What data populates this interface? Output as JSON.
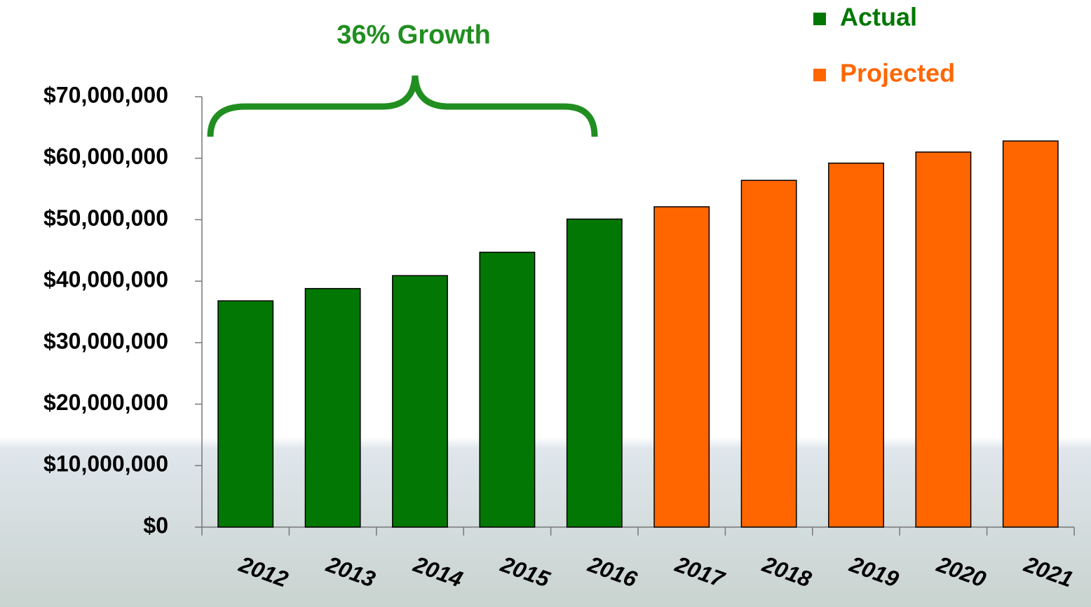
{
  "chart_data": {
    "type": "bar",
    "annotation": "36% Growth",
    "categories": [
      "2012",
      "2013",
      "2014",
      "2015",
      "2016",
      "2017",
      "2018",
      "2019",
      "2020",
      "2021"
    ],
    "series": [
      {
        "name": "Actual",
        "color": "#037703",
        "values": [
          36800000,
          38800000,
          40900000,
          44700000,
          50100000,
          null,
          null,
          null,
          null,
          null
        ]
      },
      {
        "name": "Projected",
        "color": "#ff6600",
        "values": [
          null,
          null,
          null,
          null,
          null,
          52100000,
          56400000,
          59200000,
          61000000,
          62800000
        ]
      }
    ],
    "ylim": [
      0,
      70000000
    ],
    "yticks": [
      {
        "value": 0,
        "label": "$0"
      },
      {
        "value": 10000000,
        "label": "$10,000,000"
      },
      {
        "value": 20000000,
        "label": "$20,000,000"
      },
      {
        "value": 30000000,
        "label": "$30,000,000"
      },
      {
        "value": 40000000,
        "label": "$40,000,000"
      },
      {
        "value": 50000000,
        "label": "$50,000,000"
      },
      {
        "value": 60000000,
        "label": "$60,000,000"
      },
      {
        "value": 70000000,
        "label": "$70,000,000"
      }
    ],
    "grid": false,
    "legend": "top-right"
  }
}
